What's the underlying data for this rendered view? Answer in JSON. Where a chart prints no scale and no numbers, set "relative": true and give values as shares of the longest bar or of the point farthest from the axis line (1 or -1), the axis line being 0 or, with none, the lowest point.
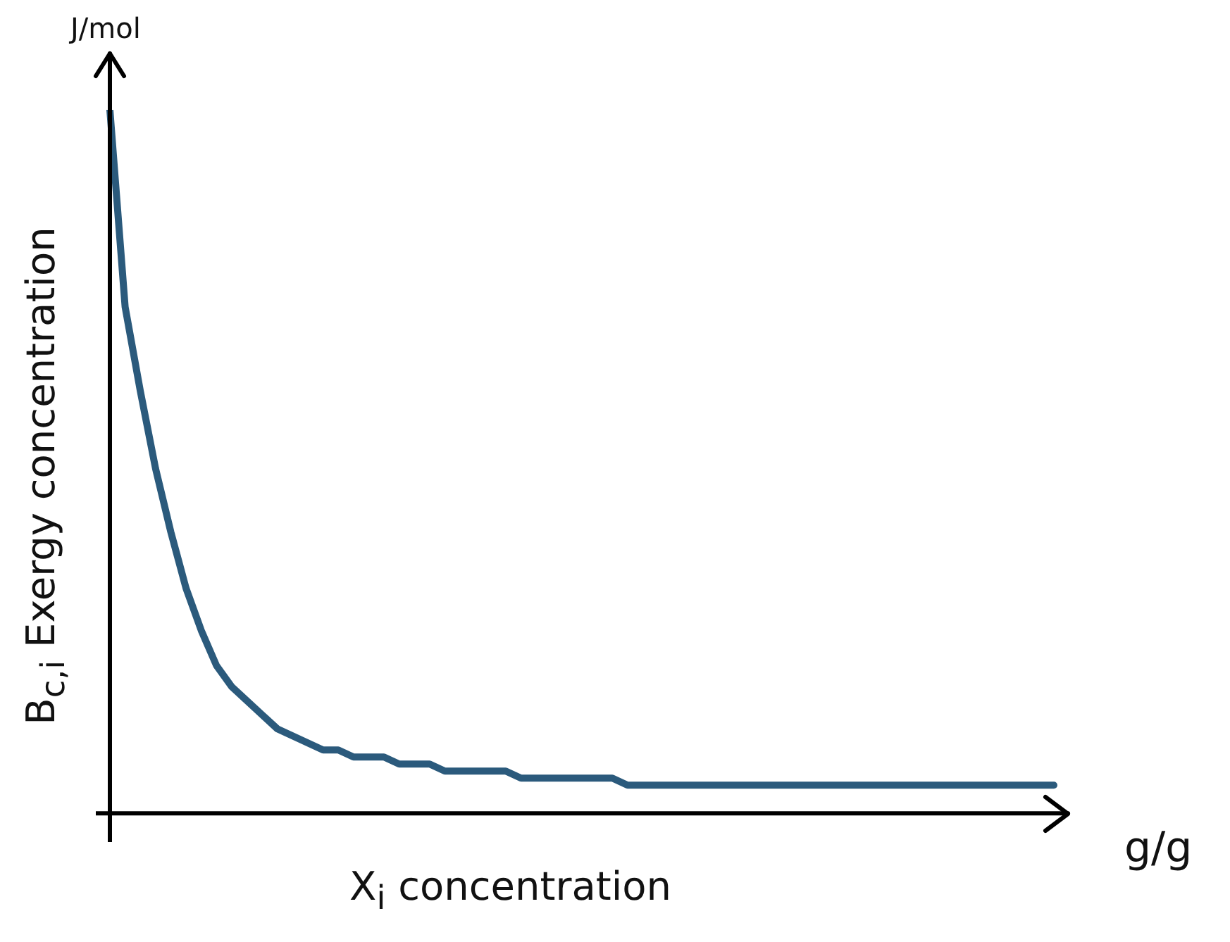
{
  "chart_data": {
    "type": "line",
    "relative": true,
    "ylabel": "B$_{c,i}$ Exergy concentration",
    "xlabel": "X$_{i}$ concentration",
    "annotations": [
      "J/mol",
      "g/g"
    ],
    "categories": [
      null,
      null,
      null,
      null,
      null,
      null,
      null,
      null,
      null,
      null,
      null,
      null,
      null,
      null,
      null,
      null,
      null,
      null,
      null,
      null,
      null,
      null,
      null,
      null,
      null,
      null,
      null,
      null,
      null,
      null,
      null,
      null,
      null,
      null,
      null,
      null,
      null,
      null,
      null,
      null,
      null,
      null,
      null,
      null,
      null,
      null,
      null,
      null,
      null,
      null,
      null,
      null,
      null,
      null,
      null,
      null,
      null,
      null,
      null,
      null,
      null,
      null,
      null
    ],
    "series": [
      {
        "color": "#2b5a7c",
        "values": [
          1.0,
          0.72,
          0.6,
          0.49,
          0.4,
          0.32,
          0.26,
          0.21,
          0.18,
          0.16,
          0.14,
          0.12,
          0.11,
          0.1,
          0.09,
          0.09,
          0.08,
          0.08,
          0.08,
          0.07,
          0.07,
          0.07,
          0.06,
          0.06,
          0.06,
          0.06,
          0.06,
          0.05,
          0.05,
          0.05,
          0.05,
          0.05,
          0.05,
          0.05,
          0.04,
          0.04,
          0.04,
          0.04,
          0.04,
          0.04,
          0.04,
          0.04,
          0.04,
          0.04,
          0.04,
          0.04,
          0.04,
          0.04,
          0.04,
          0.04,
          0.04,
          0.04,
          0.04,
          0.04,
          0.04,
          0.04,
          0.04,
          0.04,
          0.04,
          0.04,
          0.04,
          0.04,
          0.04
        ]
      }
    ],
    "grid": false,
    "legend": false,
    "marker": "none",
    "line_style": "solid"
  }
}
